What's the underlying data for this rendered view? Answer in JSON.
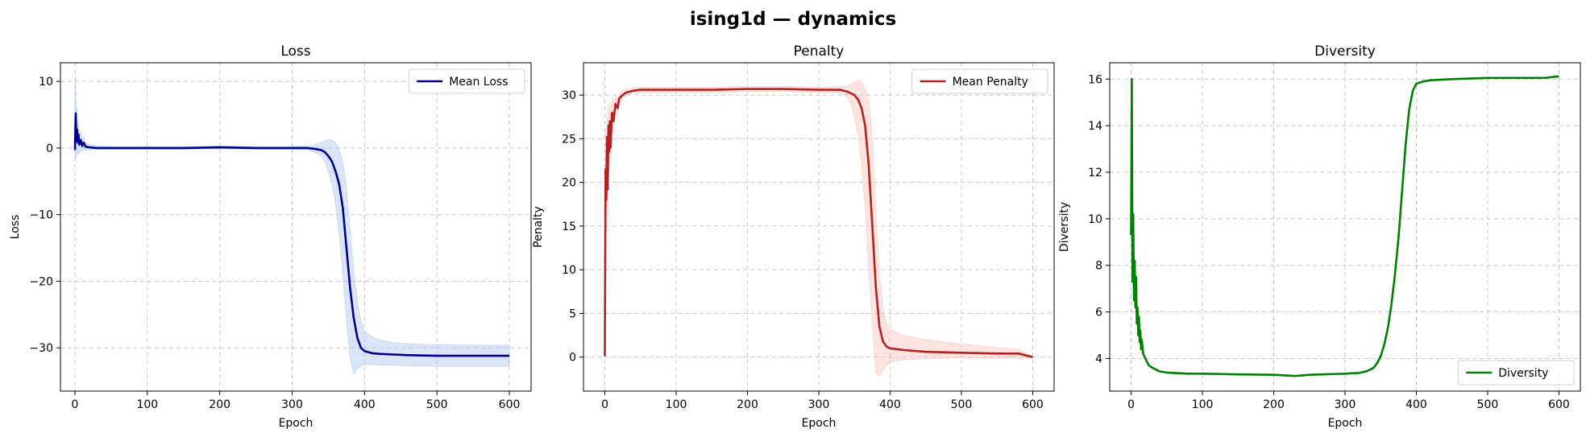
{
  "title": "ising1d — dynamics",
  "chart_data": [
    {
      "type": "line",
      "title": "Loss",
      "xlabel": "Epoch",
      "ylabel": "Loss",
      "xlim": [
        -20,
        630
      ],
      "ylim": [
        -36.5,
        12.8
      ],
      "xticks": [
        0,
        100,
        200,
        300,
        400,
        500,
        600
      ],
      "yticks": [
        -30,
        -20,
        -10,
        0,
        10
      ],
      "grid": true,
      "legend": "top-right",
      "series": [
        {
          "name": "Mean Loss",
          "color": "#00008b",
          "band_color": "#aec7ef",
          "x": [
            0,
            1,
            2,
            3,
            4,
            5,
            6,
            8,
            10,
            12,
            15,
            20,
            30,
            50,
            100,
            150,
            200,
            250,
            300,
            320,
            330,
            340,
            345,
            350,
            355,
            360,
            365,
            370,
            375,
            380,
            385,
            390,
            395,
            400,
            410,
            420,
            440,
            460,
            500,
            550,
            600
          ],
          "y": [
            -0.3,
            5.2,
            1.0,
            2.8,
            0.8,
            2.0,
            0.5,
            1.2,
            0.3,
            0.8,
            0.2,
            0.1,
            0.0,
            0.0,
            0.0,
            0.0,
            0.1,
            0.0,
            0.0,
            0.0,
            -0.1,
            -0.3,
            -0.6,
            -1.2,
            -2.0,
            -3.5,
            -5.5,
            -9.0,
            -15.0,
            -21.0,
            -25.5,
            -28.5,
            -30.0,
            -30.5,
            -30.8,
            -30.9,
            -31.0,
            -31.1,
            -31.2,
            -31.2,
            -31.2
          ],
          "lower": [
            -2.0,
            -1.0,
            -1.5,
            -0.5,
            -1.0,
            -0.5,
            -0.8,
            -0.4,
            -0.5,
            -0.2,
            -0.3,
            -0.3,
            -0.2,
            -0.2,
            -0.2,
            -0.2,
            -0.1,
            -0.2,
            -0.2,
            -0.3,
            -0.6,
            -1.2,
            -2.0,
            -3.5,
            -5.5,
            -8.5,
            -13.0,
            -19.0,
            -26.0,
            -31.5,
            -34.0,
            -33.2,
            -32.8,
            -32.5,
            -32.5,
            -32.6,
            -32.6,
            -32.7,
            -32.8,
            -32.8,
            -32.8
          ],
          "upper": [
            8.0,
            11.0,
            4.0,
            6.0,
            3.0,
            4.0,
            2.0,
            2.5,
            1.2,
            1.8,
            0.8,
            0.6,
            0.3,
            0.2,
            0.2,
            0.2,
            0.3,
            0.2,
            0.2,
            0.3,
            0.4,
            0.8,
            1.1,
            1.3,
            1.2,
            0.8,
            -0.2,
            -2.0,
            -6.0,
            -12.0,
            -18.5,
            -23.0,
            -26.0,
            -27.5,
            -28.3,
            -28.8,
            -29.2,
            -29.4,
            -29.5,
            -29.6,
            -29.6
          ]
        }
      ]
    },
    {
      "type": "line",
      "title": "Penalty",
      "xlabel": "Epoch",
      "ylabel": "Penalty",
      "xlim": [
        -30,
        630
      ],
      "ylim": [
        -3.9,
        33.7
      ],
      "xticks": [
        0,
        100,
        200,
        300,
        400,
        500,
        600
      ],
      "yticks": [
        0,
        5,
        10,
        15,
        20,
        25,
        30
      ],
      "grid": true,
      "legend": "top-right",
      "series": [
        {
          "name": "Mean Penalty",
          "color": "#b22222",
          "band_color": "#fbc3bb",
          "x": [
            0,
            1,
            2,
            3,
            4,
            5,
            6,
            7,
            8,
            10,
            12,
            15,
            18,
            20,
            25,
            30,
            40,
            50,
            100,
            150,
            200,
            230,
            250,
            300,
            330,
            340,
            345,
            350,
            355,
            360,
            365,
            370,
            375,
            380,
            385,
            390,
            395,
            400,
            420,
            450,
            500,
            550,
            580,
            590,
            600
          ],
          "y": [
            0.1,
            21.5,
            18.0,
            25.2,
            19.2,
            26.5,
            23.5,
            27.0,
            24.0,
            28.0,
            27.0,
            29.0,
            28.5,
            29.6,
            30.0,
            30.3,
            30.5,
            30.6,
            30.6,
            30.6,
            30.7,
            30.7,
            30.7,
            30.6,
            30.6,
            30.4,
            30.2,
            30.0,
            29.5,
            28.5,
            26.5,
            22.0,
            15.0,
            8.0,
            3.5,
            1.8,
            1.2,
            1.0,
            0.8,
            0.6,
            0.5,
            0.4,
            0.4,
            0.2,
            0.0
          ],
          "lower": [
            0.0,
            16.0,
            14.0,
            21.0,
            16.0,
            23.0,
            21.0,
            24.5,
            22.0,
            26.0,
            25.5,
            28.0,
            27.8,
            29.0,
            29.6,
            30.0,
            30.2,
            30.3,
            30.3,
            30.3,
            30.4,
            30.4,
            30.4,
            30.3,
            30.2,
            29.8,
            29.0,
            27.5,
            25.5,
            22.0,
            17.0,
            10.0,
            3.5,
            -1.8,
            -2.2,
            -1.5,
            -1.0,
            -0.6,
            -0.3,
            -0.2,
            -0.1,
            -0.1,
            -0.1,
            -0.1,
            -0.1
          ],
          "upper": [
            0.3,
            26.0,
            22.0,
            28.5,
            22.0,
            29.0,
            26.0,
            29.3,
            26.5,
            29.8,
            28.8,
            30.2,
            29.5,
            30.2,
            30.5,
            30.7,
            30.8,
            30.9,
            30.9,
            30.9,
            31.0,
            31.0,
            31.0,
            30.9,
            31.0,
            31.0,
            31.2,
            31.5,
            31.8,
            31.5,
            30.8,
            29.5,
            25.0,
            17.0,
            9.5,
            5.5,
            3.8,
            3.2,
            2.5,
            2.0,
            1.5,
            1.1,
            0.9,
            0.5,
            0.1
          ]
        }
      ]
    },
    {
      "type": "line",
      "title": "Diversity",
      "xlabel": "Epoch",
      "ylabel": "Diversity",
      "xlim": [
        -30,
        630
      ],
      "ylim": [
        2.6,
        16.7
      ],
      "xticks": [
        0,
        100,
        200,
        300,
        400,
        500,
        600
      ],
      "yticks": [
        4,
        6,
        8,
        10,
        12,
        14,
        16
      ],
      "grid": true,
      "legend": "bottom-right",
      "series": [
        {
          "name": "Diversity",
          "color": "#008000",
          "x": [
            0,
            1,
            2,
            3,
            4,
            5,
            6,
            7,
            8,
            9,
            10,
            11,
            12,
            13,
            14,
            15,
            17,
            20,
            25,
            30,
            40,
            50,
            60,
            80,
            100,
            150,
            200,
            230,
            250,
            300,
            320,
            330,
            340,
            345,
            350,
            355,
            360,
            365,
            370,
            375,
            380,
            385,
            390,
            395,
            400,
            410,
            420,
            450,
            500,
            550,
            580,
            600
          ],
          "y": [
            9.3,
            16.0,
            7.3,
            10.2,
            6.5,
            8.2,
            6.2,
            7.5,
            5.5,
            6.2,
            5.0,
            5.8,
            4.7,
            5.2,
            4.4,
            4.8,
            4.2,
            4.0,
            3.7,
            3.6,
            3.45,
            3.4,
            3.38,
            3.35,
            3.35,
            3.32,
            3.3,
            3.25,
            3.3,
            3.35,
            3.38,
            3.45,
            3.6,
            3.8,
            4.1,
            4.6,
            5.3,
            6.3,
            7.6,
            9.2,
            11.2,
            13.2,
            14.7,
            15.5,
            15.8,
            15.9,
            15.95,
            16.0,
            16.05,
            16.05,
            16.05,
            16.12
          ]
        }
      ]
    }
  ]
}
